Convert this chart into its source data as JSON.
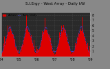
{
  "title": "S.I.Ergy - West Array - Daily kW",
  "legend_actual": "Actual",
  "legend_average": "Avg. Daily",
  "bg_color": "#888888",
  "plot_bg_color": "#2a2a2a",
  "bar_color": "#dd0000",
  "avg_line_color": "#4444ff",
  "grid_color": "#555555",
  "n_bars": 1825,
  "peak_value": 8.0,
  "y_max": 8.5,
  "y_ticks": [
    1,
    2,
    3,
    4,
    5,
    6,
    7,
    8
  ],
  "tick_fontsize": 3.5,
  "title_fontsize": 4.0,
  "legend_fontsize": 3.0
}
